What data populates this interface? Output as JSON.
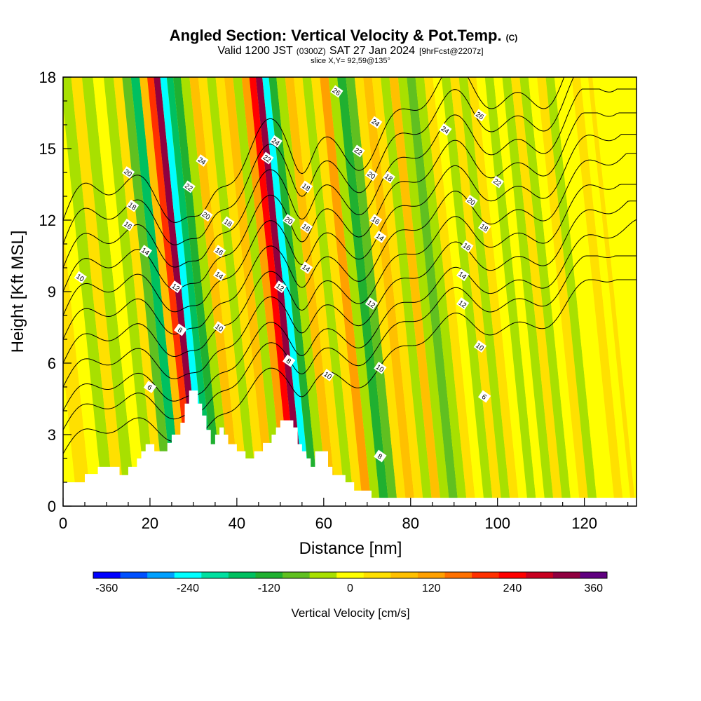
{
  "title": {
    "main": "Angled Section: Vertical Velocity & Pot.Temp.",
    "main_tag": "(C)",
    "valid_a": "Valid 1200 JST",
    "valid_b": "(0300Z)",
    "valid_c": "SAT 27 Jan 2024",
    "valid_d": "[9hrFcst@2207z]",
    "slice": "slice X,Y= 92,59@135°"
  },
  "colors": {
    "scale": [
      "#0000ff",
      "#0050ff",
      "#00a0ff",
      "#00ffff",
      "#00e0a0",
      "#00c060",
      "#20b030",
      "#60c020",
      "#a8e000",
      "#ffff00",
      "#ffe000",
      "#ffc000",
      "#ffa000",
      "#ff7000",
      "#ff3000",
      "#ff0000",
      "#c80020",
      "#900040",
      "#600080"
    ],
    "terrain": "#ffffff",
    "contour": "#000000"
  },
  "chart_data": {
    "type": "heatmap",
    "xlabel": "Distance [nm]",
    "ylabel": "Height [Kft MSL]",
    "xlim": [
      0,
      132
    ],
    "ylim": [
      0,
      18
    ],
    "x_ticks": [
      0,
      20,
      40,
      60,
      80,
      100,
      120
    ],
    "y_ticks": [
      0,
      3,
      6,
      9,
      12,
      15,
      18
    ],
    "colorbar": {
      "label": "Vertical Velocity [cm/s]",
      "range": [
        -380,
        380
      ],
      "step": 40,
      "tick_values": [
        -360,
        -240,
        -120,
        0,
        120,
        240,
        360
      ]
    },
    "velocity_columns": [
      {
        "x": 1.5,
        "v": 10
      },
      {
        "x": 5,
        "v": 30
      },
      {
        "x": 8,
        "v": 10
      },
      {
        "x": 10.5,
        "v": -30
      },
      {
        "x": 13,
        "v": 20
      },
      {
        "x": 15.5,
        "v": -40
      },
      {
        "x": 18,
        "v": 10
      },
      {
        "x": 20.5,
        "v": -50
      },
      {
        "x": 22.5,
        "v": 30
      },
      {
        "x": 24.5,
        "v": -100
      },
      {
        "x": 26.5,
        "v": -150
      },
      {
        "x": 28.5,
        "v": 80
      },
      {
        "x": 30,
        "v": 200
      },
      {
        "x": 31.5,
        "v": 330
      },
      {
        "x": 33,
        "v": -260
      },
      {
        "x": 34.5,
        "v": -170
      },
      {
        "x": 36,
        "v": -120
      },
      {
        "x": 38,
        "v": -30
      },
      {
        "x": 40,
        "v": 60
      },
      {
        "x": 42,
        "v": 20
      },
      {
        "x": 44,
        "v": -40
      },
      {
        "x": 46,
        "v": 20
      },
      {
        "x": 48,
        "v": 60
      },
      {
        "x": 50,
        "v": -40
      },
      {
        "x": 52,
        "v": 120
      },
      {
        "x": 53.5,
        "v": 230
      },
      {
        "x": 55,
        "v": 300
      },
      {
        "x": 56.5,
        "v": -230
      },
      {
        "x": 58,
        "v": -140
      },
      {
        "x": 60,
        "v": -30
      },
      {
        "x": 62,
        "v": 80
      },
      {
        "x": 64,
        "v": 20
      },
      {
        "x": 66,
        "v": -40
      },
      {
        "x": 68,
        "v": 30
      },
      {
        "x": 70,
        "v": 110
      },
      {
        "x": 72,
        "v": -30
      },
      {
        "x": 74,
        "v": -110
      },
      {
        "x": 76,
        "v": -70
      },
      {
        "x": 78,
        "v": 20
      },
      {
        "x": 80,
        "v": 70
      },
      {
        "x": 82,
        "v": 20
      },
      {
        "x": 84,
        "v": -30
      },
      {
        "x": 86,
        "v": 90
      },
      {
        "x": 88,
        "v": -60
      },
      {
        "x": 90,
        "v": -100
      },
      {
        "x": 92,
        "v": -40
      },
      {
        "x": 94,
        "v": 20
      },
      {
        "x": 96,
        "v": -20
      },
      {
        "x": 98,
        "v": -50
      },
      {
        "x": 100,
        "v": 20
      },
      {
        "x": 102,
        "v": -30
      },
      {
        "x": 104,
        "v": 30
      },
      {
        "x": 106,
        "v": -20
      },
      {
        "x": 108,
        "v": -50
      },
      {
        "x": 110,
        "v": 10
      },
      {
        "x": 112,
        "v": -30
      },
      {
        "x": 114,
        "v": 20
      },
      {
        "x": 116,
        "v": -40
      },
      {
        "x": 118,
        "v": -10
      },
      {
        "x": 120,
        "v": 30
      },
      {
        "x": 122,
        "v": -30
      },
      {
        "x": 124,
        "v": 10
      },
      {
        "x": 126,
        "v": -20
      },
      {
        "x": 128,
        "v": 20
      },
      {
        "x": 130,
        "v": -10
      },
      {
        "x": 131.5,
        "v": 20
      }
    ],
    "terrain": [
      [
        0,
        1.0
      ],
      [
        5,
        1.0
      ],
      [
        5,
        1.35
      ],
      [
        8,
        1.35
      ],
      [
        8,
        1.65
      ],
      [
        13,
        1.65
      ],
      [
        13,
        1.3
      ],
      [
        15,
        1.3
      ],
      [
        15,
        1.65
      ],
      [
        17,
        1.65
      ],
      [
        17,
        2.0
      ],
      [
        18,
        2.0
      ],
      [
        18,
        2.3
      ],
      [
        19,
        2.3
      ],
      [
        19,
        2.6
      ],
      [
        21,
        2.6
      ],
      [
        21,
        2.3
      ],
      [
        24,
        2.3
      ],
      [
        24,
        2.65
      ],
      [
        25,
        2.65
      ],
      [
        25,
        3.0
      ],
      [
        27,
        3.0
      ],
      [
        27,
        3.5
      ],
      [
        28,
        3.5
      ],
      [
        28,
        4.3
      ],
      [
        29,
        4.3
      ],
      [
        29,
        4.85
      ],
      [
        31,
        4.85
      ],
      [
        31,
        4.3
      ],
      [
        32,
        4.3
      ],
      [
        32,
        3.8
      ],
      [
        33,
        3.8
      ],
      [
        33,
        3.2
      ],
      [
        34,
        3.2
      ],
      [
        34,
        2.6
      ],
      [
        35,
        2.6
      ],
      [
        35,
        3.0
      ],
      [
        36,
        3.0
      ],
      [
        36,
        3.3
      ],
      [
        37,
        3.3
      ],
      [
        37,
        3.0
      ],
      [
        38,
        3.0
      ],
      [
        38,
        2.6
      ],
      [
        40,
        2.6
      ],
      [
        40,
        2.3
      ],
      [
        42,
        2.3
      ],
      [
        42,
        2.0
      ],
      [
        44,
        2.0
      ],
      [
        44,
        2.3
      ],
      [
        46,
        2.3
      ],
      [
        46,
        2.65
      ],
      [
        48,
        2.65
      ],
      [
        48,
        3.0
      ],
      [
        49,
        3.0
      ],
      [
        49,
        3.3
      ],
      [
        50,
        3.3
      ],
      [
        50,
        3.6
      ],
      [
        53,
        3.6
      ],
      [
        53,
        3.3
      ],
      [
        54,
        3.3
      ],
      [
        54,
        2.6
      ],
      [
        55,
        2.6
      ],
      [
        55,
        2.3
      ],
      [
        56,
        2.3
      ],
      [
        56,
        2.0
      ],
      [
        57,
        2.0
      ],
      [
        57,
        1.65
      ],
      [
        58,
        1.65
      ],
      [
        58,
        2.3
      ],
      [
        61,
        2.3
      ],
      [
        61,
        1.65
      ],
      [
        62,
        1.65
      ],
      [
        62,
        1.3
      ],
      [
        65,
        1.3
      ],
      [
        65,
        1.0
      ],
      [
        67,
        1.0
      ],
      [
        67,
        0.65
      ],
      [
        71,
        0.65
      ],
      [
        71,
        0.35
      ],
      [
        132,
        0.35
      ]
    ],
    "isentropes": [
      {
        "value": 6,
        "base": 2.2,
        "rate": 0.055,
        "ymax": 7.5,
        "labels": [
          [
            20,
            5.0
          ],
          [
            97,
            4.6
          ]
        ]
      },
      {
        "value": 8,
        "base": 3.2,
        "rate": 0.055,
        "ymax": 8.5,
        "labels": [
          [
            27,
            7.4
          ],
          [
            52,
            6.1
          ],
          [
            73,
            2.1
          ]
        ]
      },
      {
        "value": 10,
        "base": 4.0,
        "rate": 0.055,
        "ymax": 10.2,
        "labels": [
          [
            4,
            9.6
          ],
          [
            36,
            7.5
          ],
          [
            61,
            5.5
          ],
          [
            73,
            5.8
          ],
          [
            96,
            6.7
          ]
        ]
      },
      {
        "value": 12,
        "base": 5.0,
        "rate": 0.055,
        "ymax": 10.8,
        "labels": [
          [
            26,
            9.2
          ],
          [
            50,
            9.2
          ],
          [
            71,
            8.5
          ],
          [
            92,
            8.5
          ]
        ]
      },
      {
        "value": 14,
        "base": 6.0,
        "rate": 0.055,
        "ymax": 11.5,
        "labels": [
          [
            19,
            10.7
          ],
          [
            36,
            9.7
          ],
          [
            56,
            10.0
          ],
          [
            73,
            11.3
          ],
          [
            92,
            9.7
          ]
        ]
      },
      {
        "value": 16,
        "base": 7.0,
        "rate": 0.055,
        "ymax": 12.8,
        "labels": [
          [
            15,
            11.8
          ],
          [
            36,
            10.7
          ],
          [
            56,
            11.7
          ],
          [
            72,
            12.0
          ],
          [
            93,
            10.9
          ]
        ]
      },
      {
        "value": 18,
        "base": 8.0,
        "rate": 0.055,
        "ymax": 13.6,
        "labels": [
          [
            16,
            12.6
          ],
          [
            38,
            11.9
          ],
          [
            56,
            13.4
          ],
          [
            75,
            13.8
          ],
          [
            97,
            11.7
          ]
        ]
      },
      {
        "value": 20,
        "base": 9.0,
        "rate": 0.055,
        "ymax": 14.5,
        "labels": [
          [
            15,
            14.0
          ],
          [
            33,
            12.2
          ],
          [
            52,
            12.0
          ],
          [
            71,
            13.9
          ],
          [
            94,
            12.8
          ]
        ]
      },
      {
        "value": 22,
        "base": 10.0,
        "rate": 0.055,
        "ymax": 15.5,
        "labels": [
          [
            29,
            13.4
          ],
          [
            47,
            14.6
          ],
          [
            68,
            14.9
          ],
          [
            100,
            13.6
          ]
        ]
      },
      {
        "value": 24,
        "base": 11.0,
        "rate": 0.055,
        "ymax": 16.5,
        "labels": [
          [
            32,
            14.5
          ],
          [
            49,
            15.3
          ],
          [
            72,
            16.1
          ],
          [
            88,
            15.8
          ]
        ]
      },
      {
        "value": 26,
        "base": 12.0,
        "rate": 0.055,
        "ymax": 17.5,
        "labels": [
          [
            63,
            17.4
          ],
          [
            96,
            16.4
          ]
        ]
      }
    ]
  }
}
